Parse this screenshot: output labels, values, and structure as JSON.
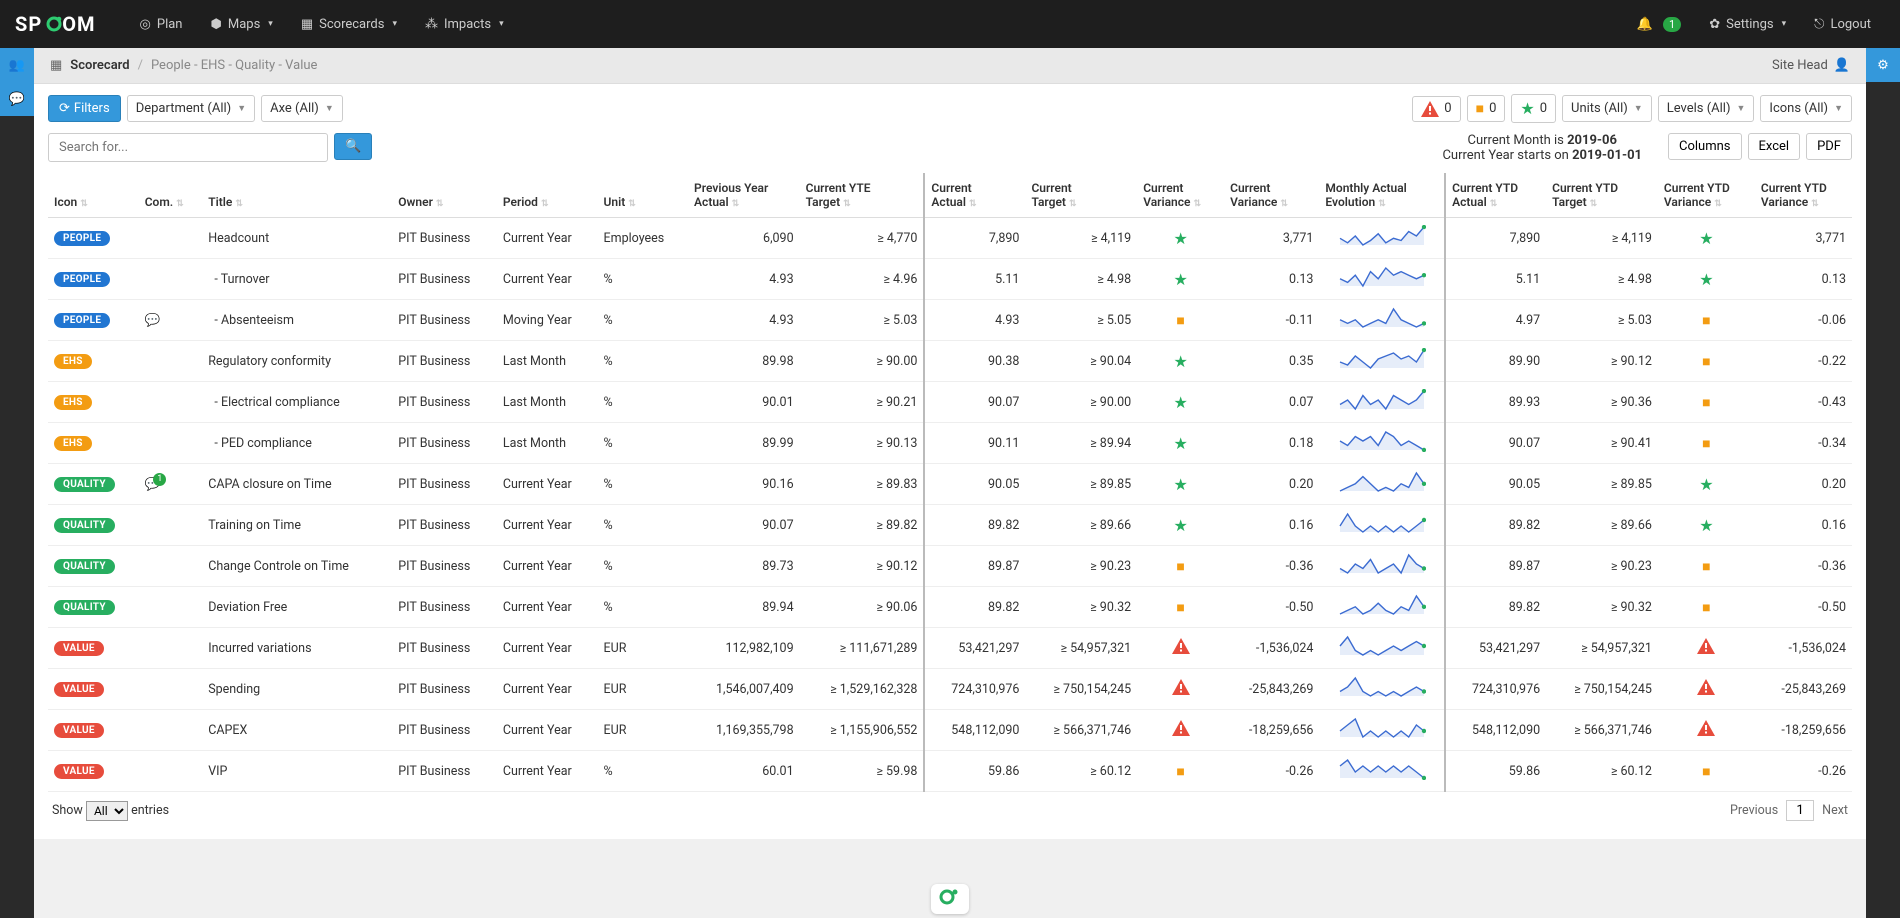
{
  "logo": {
    "text": "SP",
    "accent": "O",
    "text2": "OM"
  },
  "nav": {
    "plan": "Plan",
    "maps": "Maps",
    "scorecards": "Scorecards",
    "impacts": "Impacts",
    "settings": "Settings",
    "logout": "Logout",
    "notif_count": "1"
  },
  "breadcrumb": {
    "main": "Scorecard",
    "sub": "People - EHS - Quality - Value",
    "role": "Site Head"
  },
  "filters": {
    "button": "Filters",
    "department": "Department (All)",
    "axe": "Axe (All)",
    "units": "Units (All)",
    "levels": "Levels (All)",
    "icons": "Icons (All)",
    "status_red": "0",
    "status_orange": "0",
    "status_green": "0"
  },
  "search_placeholder": "Search for...",
  "info": {
    "l1a": "Current Month is ",
    "l1b": "2019-06",
    "l2a": "Current Year starts on ",
    "l2b": "2019-01-01"
  },
  "export": {
    "columns": "Columns",
    "excel": "Excel",
    "pdf": "PDF"
  },
  "headers": [
    "Icon",
    "Com.",
    "Title",
    "Owner",
    "Period",
    "Unit",
    "Previous Year Actual",
    "Current YTE Target",
    "Current Actual",
    "Current Target",
    "Current Variance",
    "Current Variance",
    "Monthly Actual Evolution",
    "Current YTD Actual",
    "Current YTD Target",
    "Current YTD Variance",
    "Current YTD Variance"
  ],
  "rows": [
    {
      "tag": "PEOPLE",
      "tagCls": "people",
      "com": "",
      "title": "Headcount",
      "owner": "PIT Business",
      "period": "Current Year",
      "unit": "Employees",
      "prev": "6,090",
      "yte": "≥ 4,770",
      "curA": "7,890",
      "curT": "≥ 4,119",
      "varI": "star",
      "varN": "3,771",
      "ytdA": "7,890",
      "ytdT": "≥ 4,119",
      "ytdVI": "star",
      "ytdVN": "3,771"
    },
    {
      "tag": "PEOPLE",
      "tagCls": "people",
      "com": "",
      "title": "  - Turnover",
      "owner": "PIT Business",
      "period": "Current Year",
      "unit": "%",
      "prev": "4.93",
      "yte": "≥ 4.96",
      "curA": "5.11",
      "curT": "≥ 4.98",
      "varI": "star",
      "varN": "0.13",
      "ytdA": "5.11",
      "ytdT": "≥ 4.98",
      "ytdVI": "star",
      "ytdVN": "0.13"
    },
    {
      "tag": "PEOPLE",
      "tagCls": "people",
      "com": "c",
      "title": "  - Absenteeism",
      "owner": "PIT Business",
      "period": "Moving Year",
      "unit": "%",
      "prev": "4.93",
      "yte": "≥ 5.03",
      "curA": "4.93",
      "curT": "≥ 5.05",
      "varI": "square",
      "varN": "-0.11",
      "ytdA": "4.97",
      "ytdT": "≥ 5.03",
      "ytdVI": "square",
      "ytdVN": "-0.06"
    },
    {
      "tag": "EHS",
      "tagCls": "ehs",
      "com": "",
      "title": "Regulatory conformity",
      "owner": "PIT Business",
      "period": "Last Month",
      "unit": "%",
      "prev": "89.98",
      "yte": "≥ 90.00",
      "curA": "90.38",
      "curT": "≥ 90.04",
      "varI": "star",
      "varN": "0.35",
      "ytdA": "89.90",
      "ytdT": "≥ 90.12",
      "ytdVI": "square",
      "ytdVN": "-0.22"
    },
    {
      "tag": "EHS",
      "tagCls": "ehs",
      "com": "",
      "title": "  - Electrical compliance",
      "owner": "PIT Business",
      "period": "Last Month",
      "unit": "%",
      "prev": "90.01",
      "yte": "≥ 90.21",
      "curA": "90.07",
      "curT": "≥ 90.00",
      "varI": "star",
      "varN": "0.07",
      "ytdA": "89.93",
      "ytdT": "≥ 90.36",
      "ytdVI": "square",
      "ytdVN": "-0.43"
    },
    {
      "tag": "EHS",
      "tagCls": "ehs",
      "com": "",
      "title": "  - PED compliance",
      "owner": "PIT Business",
      "period": "Last Month",
      "unit": "%",
      "prev": "89.99",
      "yte": "≥ 90.13",
      "curA": "90.11",
      "curT": "≥ 89.94",
      "varI": "star",
      "varN": "0.18",
      "ytdA": "90.07",
      "ytdT": "≥ 90.41",
      "ytdVI": "square",
      "ytdVN": "-0.34"
    },
    {
      "tag": "QUALITY",
      "tagCls": "quality",
      "com": "c1",
      "title": "CAPA closure on Time",
      "owner": "PIT Business",
      "period": "Current Year",
      "unit": "%",
      "prev": "90.16",
      "yte": "≥ 89.83",
      "curA": "90.05",
      "curT": "≥ 89.85",
      "varI": "star",
      "varN": "0.20",
      "ytdA": "90.05",
      "ytdT": "≥ 89.85",
      "ytdVI": "star",
      "ytdVN": "0.20"
    },
    {
      "tag": "QUALITY",
      "tagCls": "quality",
      "com": "",
      "title": "Training on Time",
      "owner": "PIT Business",
      "period": "Current Year",
      "unit": "%",
      "prev": "90.07",
      "yte": "≥ 89.82",
      "curA": "89.82",
      "curT": "≥ 89.66",
      "varI": "star",
      "varN": "0.16",
      "ytdA": "89.82",
      "ytdT": "≥ 89.66",
      "ytdVI": "star",
      "ytdVN": "0.16"
    },
    {
      "tag": "QUALITY",
      "tagCls": "quality",
      "com": "",
      "title": "Change Controle on Time",
      "owner": "PIT Business",
      "period": "Current Year",
      "unit": "%",
      "prev": "89.73",
      "yte": "≥ 90.12",
      "curA": "89.87",
      "curT": "≥ 90.23",
      "varI": "square",
      "varN": "-0.36",
      "ytdA": "89.87",
      "ytdT": "≥ 90.23",
      "ytdVI": "square",
      "ytdVN": "-0.36"
    },
    {
      "tag": "QUALITY",
      "tagCls": "quality",
      "com": "",
      "title": "Deviation Free",
      "owner": "PIT Business",
      "period": "Current Year",
      "unit": "%",
      "prev": "89.94",
      "yte": "≥ 90.06",
      "curA": "89.82",
      "curT": "≥ 90.32",
      "varI": "square",
      "varN": "-0.50",
      "ytdA": "89.82",
      "ytdT": "≥ 90.32",
      "ytdVI": "square",
      "ytdVN": "-0.50"
    },
    {
      "tag": "VALUE",
      "tagCls": "value",
      "com": "",
      "title": "Incurred variations",
      "owner": "PIT Business",
      "period": "Current Year",
      "unit": "EUR",
      "prev": "112,982,109",
      "yte": "≥ 111,671,289",
      "curA": "53,421,297",
      "curT": "≥ 54,957,321",
      "varI": "alert",
      "varN": "-1,536,024",
      "ytdA": "53,421,297",
      "ytdT": "≥ 54,957,321",
      "ytdVI": "alert",
      "ytdVN": "-1,536,024"
    },
    {
      "tag": "VALUE",
      "tagCls": "value",
      "com": "",
      "title": "Spending",
      "owner": "PIT Business",
      "period": "Current Year",
      "unit": "EUR",
      "prev": "1,546,007,409",
      "yte": "≥ 1,529,162,328",
      "curA": "724,310,976",
      "curT": "≥ 750,154,245",
      "varI": "alert",
      "varN": "-25,843,269",
      "ytdA": "724,310,976",
      "ytdT": "≥ 750,154,245",
      "ytdVI": "alert",
      "ytdVN": "-25,843,269"
    },
    {
      "tag": "VALUE",
      "tagCls": "value",
      "com": "",
      "title": "CAPEX",
      "owner": "PIT Business",
      "period": "Current Year",
      "unit": "EUR",
      "prev": "1,169,355,798",
      "yte": "≥ 1,155,906,552",
      "curA": "548,112,090",
      "curT": "≥ 566,371,746",
      "varI": "alert",
      "varN": "-18,259,656",
      "ytdA": "548,112,090",
      "ytdT": "≥ 566,371,746",
      "ytdVI": "alert",
      "ytdVN": "-18,259,656"
    },
    {
      "tag": "VALUE",
      "tagCls": "value",
      "com": "",
      "title": "VIP",
      "owner": "PIT Business",
      "period": "Current Year",
      "unit": "%",
      "prev": "60.01",
      "yte": "≥ 59.98",
      "curA": "59.86",
      "curT": "≥ 60.12",
      "varI": "square",
      "varN": "-0.26",
      "ytdA": "59.86",
      "ytdT": "≥ 60.12",
      "ytdVI": "square",
      "ytdVN": "-0.26"
    }
  ],
  "sparklines": [
    [
      8,
      6,
      9,
      5,
      7,
      10,
      6,
      8,
      7,
      11,
      9,
      13
    ],
    [
      7,
      6,
      8,
      5,
      9,
      7,
      10,
      8,
      9,
      8,
      7,
      8
    ],
    [
      7,
      6,
      7,
      5,
      6,
      7,
      6,
      10,
      7,
      6,
      5,
      6
    ],
    [
      7,
      6,
      9,
      7,
      5,
      8,
      9,
      10,
      8,
      9,
      7,
      11
    ],
    [
      7,
      8,
      6,
      9,
      7,
      8,
      6,
      9,
      8,
      7,
      8,
      10
    ],
    [
      7,
      6,
      8,
      7,
      8,
      6,
      9,
      8,
      6,
      7,
      6,
      5
    ],
    [
      6,
      7,
      8,
      10,
      8,
      6,
      7,
      6,
      8,
      7,
      11,
      8
    ],
    [
      7,
      9,
      7,
      6,
      7,
      6,
      7,
      6,
      7,
      6,
      7,
      8
    ],
    [
      7,
      6,
      8,
      7,
      9,
      6,
      7,
      8,
      6,
      10,
      8,
      7
    ],
    [
      6,
      7,
      8,
      6,
      7,
      9,
      7,
      6,
      8,
      7,
      11,
      8
    ],
    [
      7,
      9,
      6,
      5,
      6,
      5,
      6,
      7,
      6,
      7,
      8,
      7
    ],
    [
      7,
      8,
      10,
      7,
      6,
      7,
      6,
      7,
      6,
      7,
      8,
      7
    ],
    [
      7,
      8,
      9,
      6,
      7,
      6,
      7,
      6,
      7,
      6,
      8,
      7
    ],
    [
      7,
      8,
      6,
      7,
      6,
      7,
      6,
      7,
      6,
      7,
      6,
      5
    ]
  ],
  "sparkColors": {
    "line": "#3b6bd1",
    "fill": "#dbe6f7",
    "dot": "#27ae60"
  },
  "footer": {
    "show": "Show",
    "entries": "entries",
    "all": "All",
    "prev": "Previous",
    "page": "1",
    "next": "Next"
  }
}
